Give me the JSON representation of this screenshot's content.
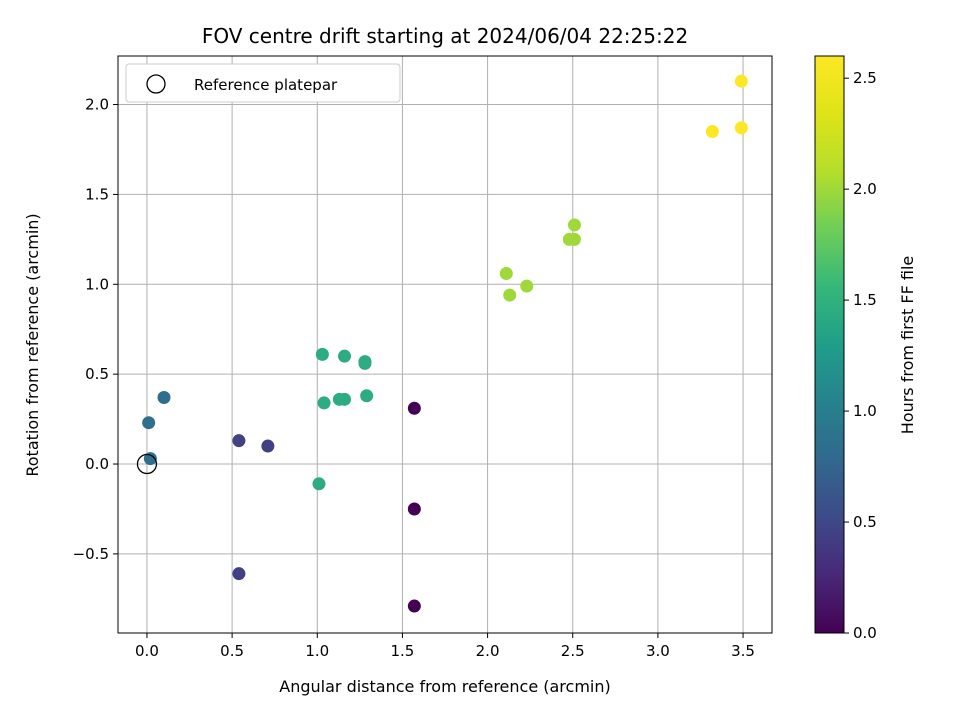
{
  "chart_data": {
    "type": "scatter",
    "title": "FOV centre drift starting at 2024/06/04 22:25:22",
    "xlabel": "Angular distance from reference (arcmin)",
    "ylabel": "Rotation from reference (arcmin)",
    "xlim": [
      -0.17,
      3.67
    ],
    "ylim": [
      -0.94,
      2.27
    ],
    "xticks": [
      0.0,
      0.5,
      1.0,
      1.5,
      2.0,
      2.5,
      3.0,
      3.5
    ],
    "xtick_labels": [
      "0.0",
      "0.5",
      "1.0",
      "1.5",
      "2.0",
      "2.5",
      "3.0",
      "3.5"
    ],
    "yticks": [
      -0.5,
      0.0,
      0.5,
      1.0,
      1.5,
      2.0
    ],
    "ytick_labels": [
      "−0.5",
      "0.0",
      "0.5",
      "1.0",
      "1.5",
      "2.0"
    ],
    "grid": true,
    "colormap": "viridis",
    "colorbar": {
      "label": "Hours from first FF file",
      "range": [
        0.0,
        2.6
      ],
      "ticks": [
        0.0,
        0.5,
        1.0,
        1.5,
        2.0,
        2.5
      ],
      "tick_labels": [
        "0.0",
        "0.5",
        "1.0",
        "1.5",
        "2.0",
        "2.5"
      ]
    },
    "legend": {
      "placement": "top-left",
      "entries": [
        {
          "label": "Reference platepar",
          "marker": "open-circle",
          "color": "#000000"
        }
      ]
    },
    "reference_point": {
      "x": 0.0,
      "y": 0.0
    },
    "points": [
      {
        "x": 1.57,
        "y": 0.31,
        "t": 0.0
      },
      {
        "x": 1.57,
        "y": -0.25,
        "t": 0.0
      },
      {
        "x": 1.57,
        "y": -0.79,
        "t": 0.0
      },
      {
        "x": 0.54,
        "y": 0.13,
        "t": 0.45
      },
      {
        "x": 0.71,
        "y": 0.1,
        "t": 0.45
      },
      {
        "x": 0.54,
        "y": -0.61,
        "t": 0.45
      },
      {
        "x": 0.01,
        "y": 0.23,
        "t": 0.85
      },
      {
        "x": 0.1,
        "y": 0.37,
        "t": 0.85
      },
      {
        "x": 0.02,
        "y": 0.03,
        "t": 0.85
      },
      {
        "x": 1.03,
        "y": 0.61,
        "t": 1.45
      },
      {
        "x": 1.16,
        "y": 0.6,
        "t": 1.45
      },
      {
        "x": 1.28,
        "y": 0.57,
        "t": 1.45
      },
      {
        "x": 1.28,
        "y": 0.56,
        "t": 1.45
      },
      {
        "x": 1.04,
        "y": 0.34,
        "t": 1.45
      },
      {
        "x": 1.13,
        "y": 0.36,
        "t": 1.45
      },
      {
        "x": 1.16,
        "y": 0.36,
        "t": 1.45
      },
      {
        "x": 1.29,
        "y": 0.38,
        "t": 1.45
      },
      {
        "x": 1.01,
        "y": -0.11,
        "t": 1.45
      },
      {
        "x": 2.11,
        "y": 1.06,
        "t": 2.0
      },
      {
        "x": 2.13,
        "y": 0.94,
        "t": 2.0
      },
      {
        "x": 2.23,
        "y": 0.99,
        "t": 2.0
      },
      {
        "x": 2.51,
        "y": 1.33,
        "t": 2.0
      },
      {
        "x": 2.48,
        "y": 1.25,
        "t": 2.0
      },
      {
        "x": 2.51,
        "y": 1.25,
        "t": 2.0
      },
      {
        "x": 3.49,
        "y": 2.13,
        "t": 2.6
      },
      {
        "x": 3.32,
        "y": 1.85,
        "t": 2.6
      },
      {
        "x": 3.49,
        "y": 1.87,
        "t": 2.6
      }
    ]
  }
}
